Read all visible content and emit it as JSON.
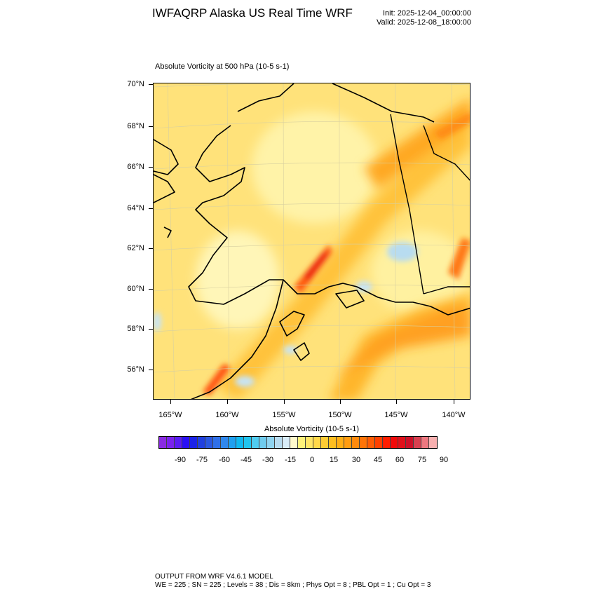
{
  "header": {
    "title": "IWFAQRP Alaska US Real Time WRF",
    "init": "Init: 2025-12-04_00:00:00",
    "valid": "Valid: 2025-12-08_18:00:00"
  },
  "plot": {
    "subtitle": "Absolute Vorticity at 500 hPa   (10-5 s-1)",
    "lat_labels": [
      "70°N",
      "68°N",
      "66°N",
      "64°N",
      "62°N",
      "60°N",
      "58°N",
      "56°N"
    ],
    "lon_labels": [
      "165°W",
      "160°W",
      "155°W",
      "150°W",
      "145°W",
      "140°W"
    ]
  },
  "colorbar": {
    "title": "Absolute Vorticity  (10-5 s-1)",
    "labels": [
      "-90",
      "-75",
      "-60",
      "-45",
      "-30",
      "-15",
      "0",
      "15",
      "30",
      "45",
      "60",
      "75",
      "90"
    ],
    "colors": [
      "#8a2be2",
      "#7a22ee",
      "#5a1cf5",
      "#2a10f5",
      "#1c24e8",
      "#2040e0",
      "#2a58e0",
      "#3070e8",
      "#3088ee",
      "#20a0f0",
      "#10b8f0",
      "#20c4ee",
      "#50ccf0",
      "#70ccee",
      "#90d4f0",
      "#b8dcf0",
      "#d8ecf8",
      "#fffacd",
      "#fff27a",
      "#ffe566",
      "#ffd84a",
      "#ffcc33",
      "#ffbe20",
      "#ffae14",
      "#ff9c10",
      "#ff8a0c",
      "#ff7408",
      "#ff5c04",
      "#ff4000",
      "#ff1e00",
      "#f20a0a",
      "#e0101a",
      "#cc1028",
      "#d84050",
      "#ee7880",
      "#f8b0b0"
    ]
  },
  "footer": {
    "line1": "OUTPUT FROM WRF V4.6.1 MODEL",
    "line2": "WE = 225 ; SN = 225 ; Levels = 38 ; Dis = 8km ; Phys Opt = 8 ; PBL Opt = 1 ; Cu Opt = 3"
  }
}
